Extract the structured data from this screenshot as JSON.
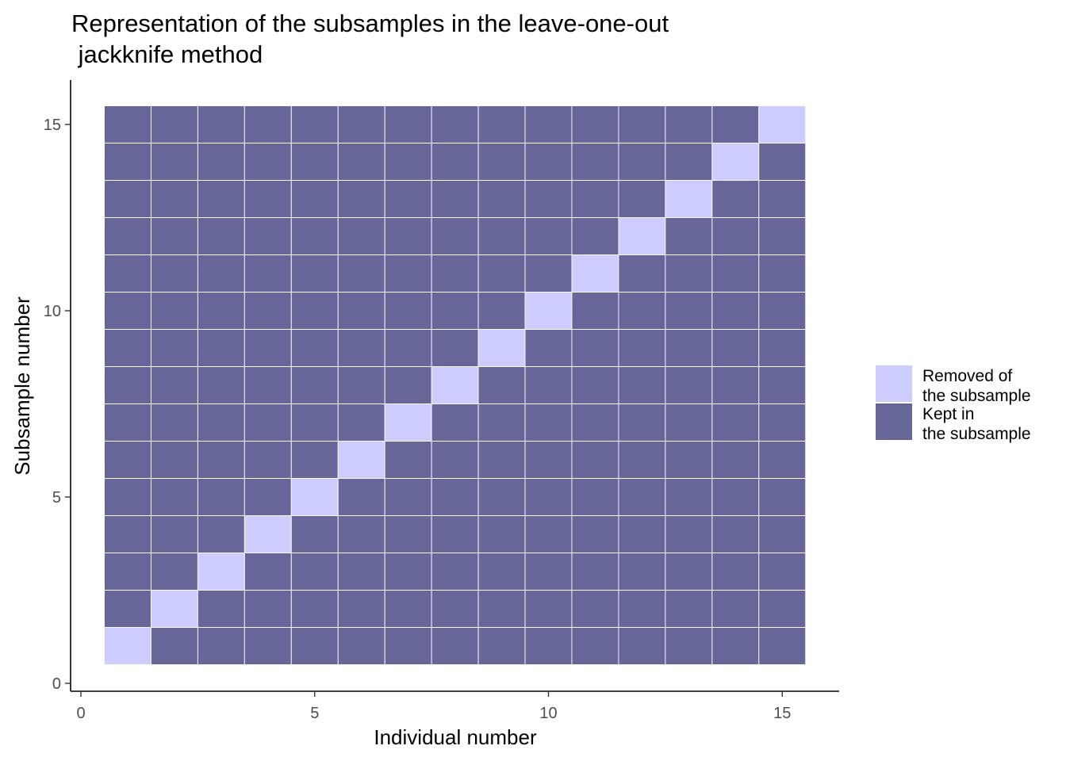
{
  "chart_data": {
    "type": "heatmap",
    "title_line1": "Representation of the subsamples in the leave-one-out",
    "title_line2": " jackknife method",
    "xlabel": "Individual number",
    "ylabel": "Subsample number",
    "xlim": [
      0,
      15.5
    ],
    "ylim": [
      0,
      15.5
    ],
    "x_ticks": [
      0,
      5,
      10,
      15
    ],
    "y_ticks": [
      0,
      5,
      10,
      15
    ],
    "x_tick_labels": [
      "0",
      "5",
      "10",
      "15"
    ],
    "y_tick_labels": [
      "0",
      "5",
      "10",
      "15"
    ],
    "n_individuals": 15,
    "n_subsamples": 15,
    "rule": "cell (individual i, subsample j) is 'Removed of the subsample' when i == j, otherwise 'Kept in the subsample'",
    "legend": {
      "placement": "right",
      "entries": [
        {
          "key": "removed",
          "line1": "Removed of",
          "line2": " the subsample",
          "color": "#ccccff"
        },
        {
          "key": "kept",
          "line1": "Kept in",
          "line2": " the subsample",
          "color": "#666699"
        }
      ]
    },
    "colors": {
      "removed": "#ccccff",
      "kept": "#666699",
      "grid_line": "#ffffff",
      "axis": "#000000",
      "tick_text": "#4d4d4d"
    }
  }
}
